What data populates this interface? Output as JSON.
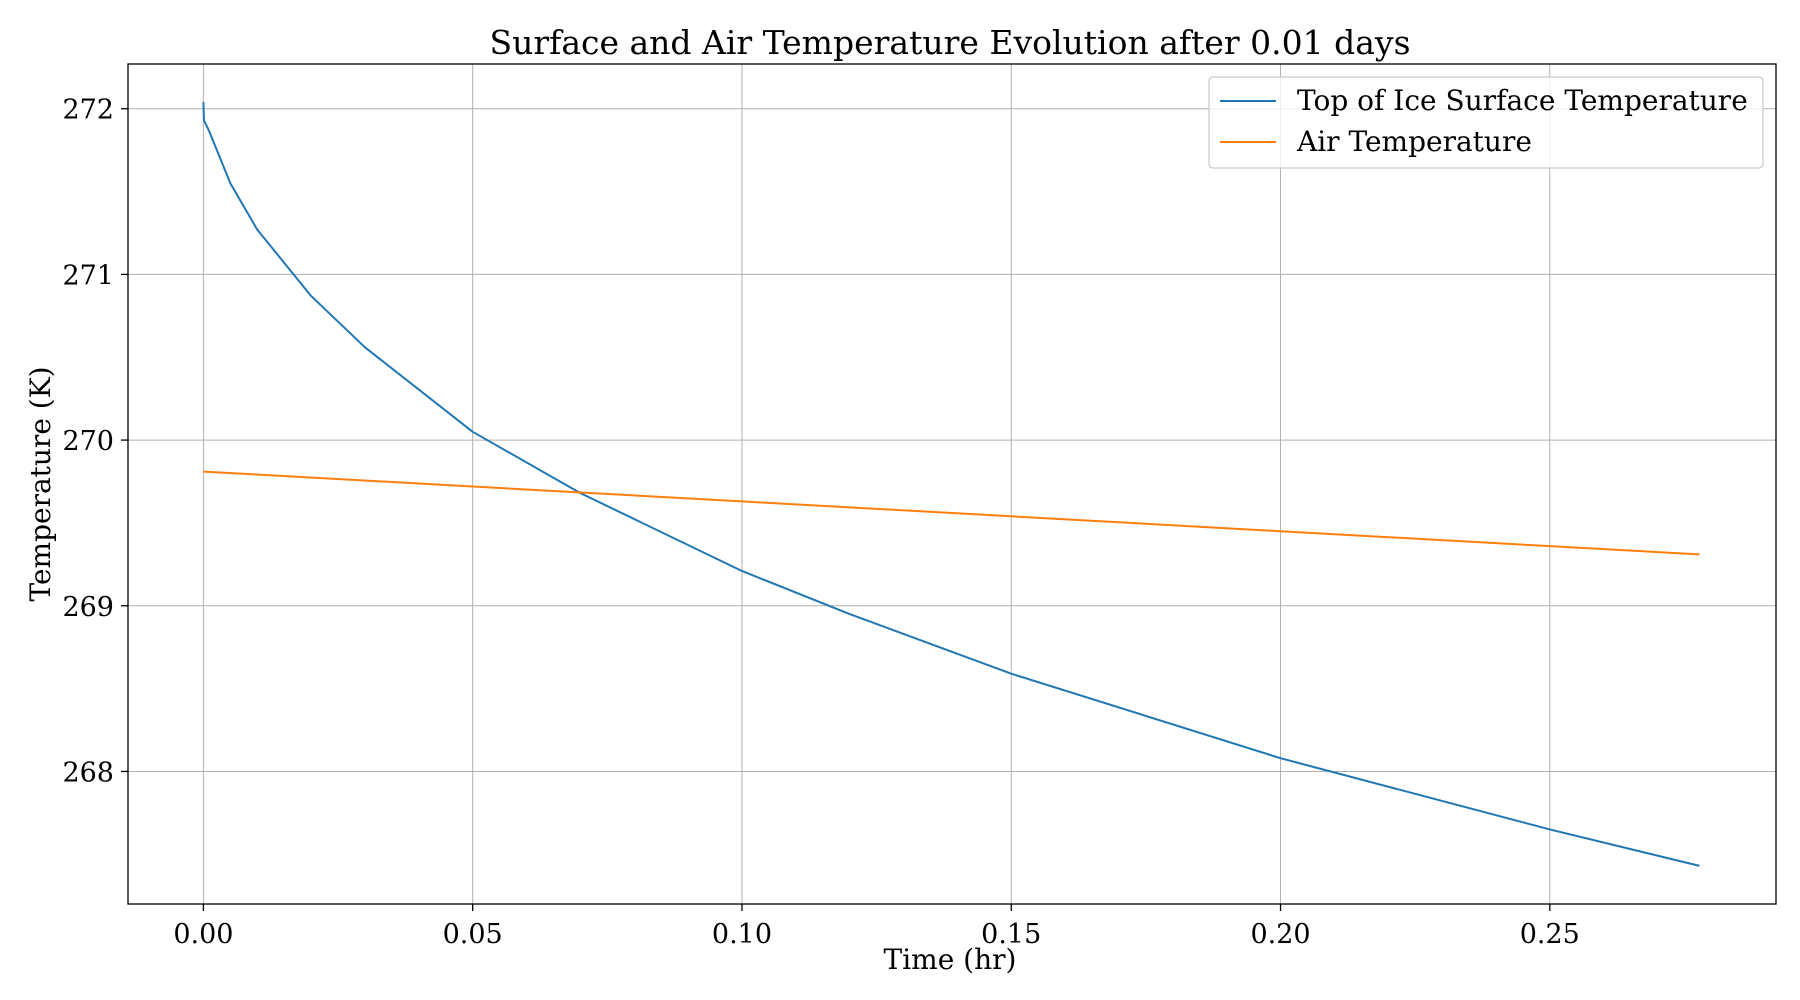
{
  "chart_data": {
    "type": "line",
    "title": "Surface and Air Temperature Evolution after 0.01 days",
    "xlabel": "Time (hr)",
    "ylabel": "Temperature (K)",
    "xlim": [
      -0.014,
      0.292
    ],
    "ylim": [
      267.2,
      272.27
    ],
    "xticks": [
      0.0,
      0.05,
      0.1,
      0.15,
      0.2,
      0.25
    ],
    "xtick_labels": [
      "0.00",
      "0.05",
      "0.10",
      "0.15",
      "0.20",
      "0.25"
    ],
    "yticks": [
      268,
      269,
      270,
      271,
      272
    ],
    "ytick_labels": [
      "268",
      "269",
      "270",
      "271",
      "272"
    ],
    "grid": true,
    "legend_position": "top-right",
    "series": [
      {
        "name": "Top of Ice Surface Temperature",
        "color": "#1f77b4",
        "x": [
          0,
          0.0001,
          0.001,
          0.005,
          0.01,
          0.02,
          0.03,
          0.05,
          0.07,
          0.1,
          0.12,
          0.15,
          0.2,
          0.25,
          0.2778
        ],
        "y": [
          272.04,
          271.93,
          271.87,
          271.55,
          271.27,
          270.87,
          270.56,
          270.05,
          269.68,
          269.21,
          268.95,
          268.59,
          268.08,
          267.65,
          267.43
        ]
      },
      {
        "name": "Air Temperature",
        "color": "#ff7f0e",
        "x": [
          0,
          0.05,
          0.1,
          0.15,
          0.2,
          0.25,
          0.2778
        ],
        "y": [
          269.81,
          269.72,
          269.63,
          269.54,
          269.45,
          269.36,
          269.31
        ]
      }
    ]
  }
}
